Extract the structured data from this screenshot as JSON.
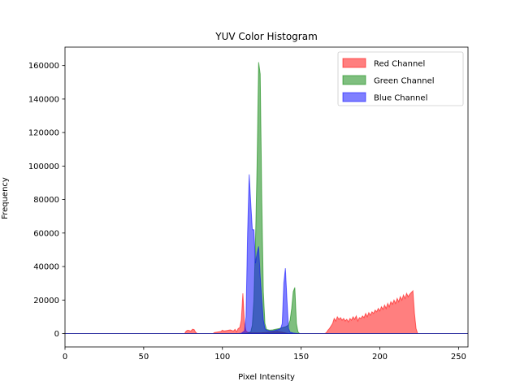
{
  "chart_data": {
    "type": "area",
    "title": "YUV Color Histogram",
    "xlabel": "Pixel Intensity",
    "ylabel": "Frequency",
    "xlim": [
      0,
      256
    ],
    "ylim": [
      -8000,
      171000
    ],
    "xticks": [
      0,
      50,
      100,
      150,
      200,
      250
    ],
    "yticks": [
      0,
      20000,
      40000,
      60000,
      80000,
      100000,
      120000,
      140000,
      160000
    ],
    "grid": false,
    "legend_position": "upper right",
    "series": [
      {
        "name": "Red Channel",
        "color": "#ff0000",
        "alpha": 0.5,
        "points": [
          [
            0,
            0
          ],
          [
            76,
            0
          ],
          [
            77,
            1500
          ],
          [
            78,
            2000
          ],
          [
            79,
            1800
          ],
          [
            80,
            1500
          ],
          [
            81,
            2600
          ],
          [
            82,
            2400
          ],
          [
            83,
            800
          ],
          [
            84,
            0
          ],
          [
            94,
            0
          ],
          [
            95,
            600
          ],
          [
            97,
            900
          ],
          [
            99,
            1200
          ],
          [
            100,
            2000
          ],
          [
            101,
            1500
          ],
          [
            103,
            1800
          ],
          [
            105,
            2200
          ],
          [
            107,
            1500
          ],
          [
            108,
            2500
          ],
          [
            109,
            1000
          ],
          [
            110,
            3000
          ],
          [
            111,
            3500
          ],
          [
            112,
            8000
          ],
          [
            113,
            24000
          ],
          [
            114,
            6000
          ],
          [
            115,
            1500
          ],
          [
            116,
            800
          ],
          [
            118,
            400
          ],
          [
            125,
            500
          ],
          [
            130,
            800
          ],
          [
            135,
            1200
          ],
          [
            138,
            800
          ],
          [
            140,
            400
          ],
          [
            142,
            0
          ],
          [
            165,
            0
          ],
          [
            166,
            500
          ],
          [
            167,
            2000
          ],
          [
            168,
            3000
          ],
          [
            169,
            4500
          ],
          [
            170,
            6000
          ],
          [
            171,
            9000
          ],
          [
            172,
            7500
          ],
          [
            173,
            10000
          ],
          [
            174,
            8500
          ],
          [
            175,
            9500
          ],
          [
            176,
            8000
          ],
          [
            177,
            9000
          ],
          [
            178,
            7500
          ],
          [
            179,
            8500
          ],
          [
            180,
            7000
          ],
          [
            181,
            9000
          ],
          [
            182,
            8000
          ],
          [
            183,
            10000
          ],
          [
            184,
            8500
          ],
          [
            185,
            10500
          ],
          [
            186,
            7500
          ],
          [
            187,
            9500
          ],
          [
            188,
            9000
          ],
          [
            189,
            10500
          ],
          [
            190,
            9500
          ],
          [
            191,
            12000
          ],
          [
            192,
            10000
          ],
          [
            193,
            12500
          ],
          [
            194,
            11000
          ],
          [
            195,
            13000
          ],
          [
            196,
            12000
          ],
          [
            197,
            14000
          ],
          [
            198,
            13000
          ],
          [
            199,
            15000
          ],
          [
            200,
            13500
          ],
          [
            201,
            16000
          ],
          [
            202,
            14500
          ],
          [
            203,
            17000
          ],
          [
            204,
            15000
          ],
          [
            205,
            18000
          ],
          [
            206,
            16000
          ],
          [
            207,
            19000
          ],
          [
            208,
            17500
          ],
          [
            209,
            20000
          ],
          [
            210,
            18000
          ],
          [
            211,
            21000
          ],
          [
            212,
            19000
          ],
          [
            213,
            22000
          ],
          [
            214,
            20000
          ],
          [
            215,
            23000
          ],
          [
            216,
            21000
          ],
          [
            217,
            24000
          ],
          [
            218,
            22000
          ],
          [
            219,
            23500
          ],
          [
            220,
            24500
          ],
          [
            221,
            25500
          ],
          [
            222,
            12000
          ],
          [
            223,
            3000
          ],
          [
            224,
            0
          ],
          [
            256,
            0
          ]
        ]
      },
      {
        "name": "Green Channel",
        "color": "#008000",
        "alpha": 0.5,
        "points": [
          [
            0,
            0
          ],
          [
            112,
            0
          ],
          [
            114,
            200
          ],
          [
            116,
            300
          ],
          [
            118,
            1000
          ],
          [
            119,
            5000
          ],
          [
            120,
            20000
          ],
          [
            121,
            55000
          ],
          [
            122,
            100000
          ],
          [
            123,
            162000
          ],
          [
            124,
            155000
          ],
          [
            125,
            80000
          ],
          [
            126,
            25000
          ],
          [
            127,
            6000
          ],
          [
            128,
            2500
          ],
          [
            130,
            2000
          ],
          [
            132,
            2200
          ],
          [
            134,
            2600
          ],
          [
            136,
            3000
          ],
          [
            138,
            3500
          ],
          [
            140,
            4000
          ],
          [
            141,
            4500
          ],
          [
            142,
            5000
          ],
          [
            143,
            8000
          ],
          [
            144,
            15000
          ],
          [
            145,
            25000
          ],
          [
            146,
            27500
          ],
          [
            147,
            6000
          ],
          [
            148,
            1000
          ],
          [
            149,
            0
          ],
          [
            256,
            0
          ]
        ]
      },
      {
        "name": "Blue Channel",
        "color": "#0000ff",
        "alpha": 0.5,
        "points": [
          [
            0,
            0
          ],
          [
            110,
            0
          ],
          [
            112,
            200
          ],
          [
            114,
            1500
          ],
          [
            115,
            10000
          ],
          [
            116,
            60000
          ],
          [
            117,
            95000
          ],
          [
            118,
            78000
          ],
          [
            119,
            62000
          ],
          [
            120,
            62000
          ],
          [
            121,
            42000
          ],
          [
            122,
            48000
          ],
          [
            123,
            52000
          ],
          [
            124,
            34000
          ],
          [
            125,
            20000
          ],
          [
            126,
            8000
          ],
          [
            127,
            3000
          ],
          [
            128,
            2000
          ],
          [
            130,
            1500
          ],
          [
            132,
            1500
          ],
          [
            134,
            2000
          ],
          [
            136,
            2500
          ],
          [
            137,
            3000
          ],
          [
            138,
            6000
          ],
          [
            139,
            30000
          ],
          [
            140,
            39000
          ],
          [
            141,
            20000
          ],
          [
            142,
            3000
          ],
          [
            143,
            800
          ],
          [
            145,
            300
          ],
          [
            148,
            0
          ],
          [
            256,
            0
          ]
        ]
      }
    ]
  }
}
